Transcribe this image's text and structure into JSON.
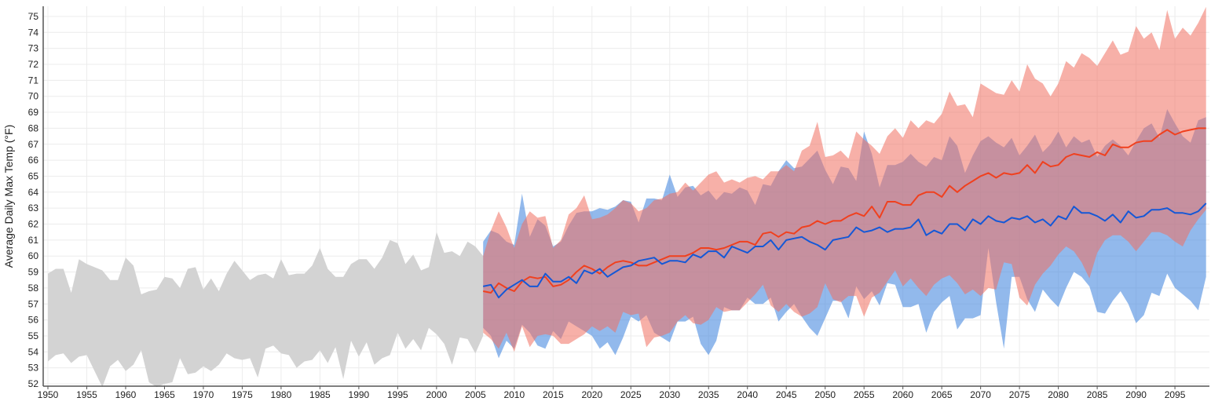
{
  "chart_data": {
    "type": "area",
    "title": "",
    "xlabel": "",
    "ylabel": "Average Daily Max Temp (°F)",
    "xlim": [
      1950,
      2099
    ],
    "ylim": [
      52,
      75
    ],
    "x_ticks": [
      1950,
      1955,
      1960,
      1965,
      1970,
      1975,
      1980,
      1985,
      1990,
      1995,
      2000,
      2005,
      2010,
      2015,
      2020,
      2025,
      2030,
      2035,
      2040,
      2045,
      2050,
      2055,
      2060,
      2065,
      2070,
      2075,
      2080,
      2085,
      2090,
      2095
    ],
    "y_ticks": [
      52,
      53,
      54,
      55,
      56,
      57,
      58,
      59,
      60,
      61,
      62,
      63,
      64,
      65,
      66,
      67,
      68,
      69,
      70,
      71,
      72,
      73,
      74,
      75
    ],
    "grid": true,
    "colors": {
      "historical": "#d3d3d3",
      "lower_band": "#8ab4e8",
      "lower_line": "#1558d6",
      "higher_band": "#f4978a",
      "higher_line": "#f0401e"
    },
    "historical": {
      "start_year": 1950,
      "max": [
        58.9,
        59.2,
        59.2,
        57.7,
        59.8,
        59.5,
        59.3,
        59.1,
        58.5,
        58.5,
        59.9,
        59.4,
        57.6,
        57.8,
        57.9,
        58.7,
        58.6,
        58.0,
        59.2,
        59.3,
        57.9,
        58.6,
        57.8,
        58.9,
        59.7,
        59.1,
        58.5,
        58.8,
        58.9,
        58.6,
        59.8,
        58.8,
        58.9,
        58.9,
        59.4,
        60.5,
        59.2,
        58.7,
        58.7,
        59.5,
        59.8,
        59.8,
        59.2,
        59.9,
        61.0,
        60.8,
        59.5,
        60.1,
        59.1,
        59.3,
        61.5,
        60.2,
        60.3,
        60.0,
        60.9,
        60.6,
        60.0
      ],
      "min": [
        53.4,
        53.8,
        53.9,
        53.3,
        53.7,
        53.8,
        52.8,
        51.8,
        53.1,
        53.5,
        52.8,
        53.2,
        54.1,
        52.1,
        51.8,
        52.0,
        52.1,
        53.6,
        52.6,
        52.7,
        53.1,
        52.8,
        53.2,
        53.9,
        53.6,
        53.5,
        53.6,
        52.4,
        54.2,
        54.4,
        53.9,
        53.8,
        53.0,
        53.4,
        53.5,
        54.1,
        53.3,
        54.3,
        52.3,
        54.7,
        53.7,
        54.6,
        53.2,
        53.6,
        53.8,
        55.2,
        54.2,
        54.8,
        54.1,
        55.5,
        55.1,
        54.5,
        53.2,
        54.9,
        54.8,
        53.9,
        55.0
      ]
    },
    "projection_start_year": 2006,
    "lower": {
      "mean": [
        58.1,
        58.2,
        57.4,
        57.9,
        58.2,
        58.5,
        58.1,
        58.1,
        58.9,
        58.4,
        58.4,
        58.7,
        58.3,
        59.1,
        58.9,
        59.2,
        58.7,
        59.0,
        59.3,
        59.4,
        59.7,
        59.8,
        59.9,
        59.5,
        59.7,
        59.7,
        59.6,
        60.1,
        59.9,
        60.3,
        60.3,
        59.9,
        60.6,
        60.4,
        60.2,
        60.6,
        60.6,
        61.0,
        60.4,
        61.0,
        61.1,
        61.2,
        60.9,
        60.7,
        60.4,
        61.0,
        61.1,
        61.2,
        61.8,
        61.5,
        61.6,
        61.8,
        61.5,
        61.7,
        61.7,
        61.8,
        62.3,
        61.3,
        61.6,
        61.4,
        62.0,
        62.0,
        61.6,
        62.3,
        62.0,
        62.5,
        62.2,
        62.1,
        62.4,
        62.3,
        62.5,
        62.1,
        62.3,
        61.9,
        62.5,
        62.3,
        63.1,
        62.7,
        62.7,
        62.5,
        62.2,
        62.6,
        62.1,
        62.8,
        62.4,
        62.5,
        62.9,
        62.9,
        63.0,
        62.7,
        62.7,
        62.6,
        62.8,
        63.3
      ],
      "max": [
        60.9,
        61.6,
        61.4,
        60.9,
        60.7,
        63.9,
        61.2,
        62.3,
        61.9,
        60.6,
        60.9,
        61.9,
        62.7,
        62.8,
        62.8,
        63.0,
        62.9,
        63.1,
        63.5,
        63.4,
        62.1,
        63.6,
        63.6,
        63.5,
        65.1,
        63.7,
        64.3,
        64.4,
        63.8,
        64.1,
        63.5,
        64.0,
        63.9,
        64.3,
        64.1,
        63.2,
        64.5,
        64.4,
        65.3,
        66.0,
        65.5,
        65.6,
        66.1,
        66.6,
        65.4,
        64.5,
        65.6,
        65.5,
        64.7,
        67.8,
        66.4,
        64.3,
        65.7,
        65.7,
        65.9,
        66.4,
        65.9,
        65.6,
        66.2,
        66.0,
        67.5,
        66.9,
        65.2,
        66.3,
        67.2,
        67.5,
        67.1,
        66.8,
        67.4,
        66.3,
        66.9,
        67.6,
        66.5,
        67.0,
        67.8,
        66.8,
        67.5,
        67.1,
        67.3,
        66.2,
        66.9,
        67.3,
        66.9,
        66.3,
        67.2,
        68.0,
        68.3,
        67.4,
        69.2,
        68.3,
        67.5,
        67.1,
        68.5,
        68.7
      ],
      "min": [
        55.5,
        55.0,
        53.6,
        54.7,
        54.2,
        55.7,
        55.2,
        54.4,
        54.2,
        55.3,
        54.8,
        55.9,
        55.6,
        55.3,
        55.0,
        54.2,
        54.6,
        53.8,
        54.9,
        56.2,
        55.9,
        56.3,
        55.2,
        54.9,
        54.6,
        55.9,
        55.9,
        56.2,
        54.5,
        53.8,
        54.7,
        56.8,
        56.6,
        56.6,
        57.4,
        57.0,
        57.0,
        57.4,
        55.9,
        56.5,
        57.0,
        56.2,
        55.5,
        55.0,
        56.1,
        57.2,
        57.2,
        56.1,
        58.1,
        57.3,
        57.8,
        56.9,
        58.3,
        58.2,
        56.8,
        56.8,
        57.0,
        55.2,
        56.5,
        57.1,
        57.5,
        55.4,
        56.1,
        56.1,
        56.3,
        60.5,
        57.1,
        54.2,
        58.7,
        58.7,
        57.3,
        56.5,
        57.9,
        57.3,
        56.8,
        58.0,
        59.0,
        58.7,
        58.1,
        56.5,
        56.4,
        57.2,
        57.8,
        57.0,
        55.8,
        56.3,
        57.7,
        57.5,
        58.9,
        58.0,
        57.6,
        57.2,
        56.6,
        58.7
      ]
    },
    "higher": {
      "mean": [
        57.8,
        57.7,
        58.3,
        58.0,
        57.8,
        58.4,
        58.7,
        58.6,
        58.7,
        58.1,
        58.2,
        58.5,
        59.0,
        59.4,
        59.2,
        58.9,
        59.3,
        59.6,
        59.7,
        59.6,
        59.4,
        59.4,
        59.6,
        59.8,
        60.0,
        60.0,
        60.0,
        60.2,
        60.5,
        60.5,
        60.4,
        60.5,
        60.7,
        60.9,
        60.9,
        60.7,
        61.4,
        61.5,
        61.2,
        61.5,
        61.4,
        61.8,
        61.9,
        62.2,
        62.0,
        62.2,
        62.2,
        62.5,
        62.7,
        62.5,
        63.1,
        62.4,
        63.4,
        63.4,
        63.2,
        63.2,
        63.8,
        64.0,
        64.0,
        63.7,
        64.4,
        64.0,
        64.4,
        64.7,
        65.0,
        65.2,
        64.9,
        65.2,
        65.1,
        65.2,
        65.7,
        65.2,
        65.9,
        65.6,
        65.7,
        66.2,
        66.4,
        66.3,
        66.2,
        66.5,
        66.3,
        67.0,
        66.8,
        66.8,
        67.1,
        67.2,
        67.2,
        67.6,
        67.9,
        67.6,
        67.8,
        67.9,
        68.0,
        68.0
      ],
      "max": [
        60.0,
        61.6,
        62.8,
        61.8,
        60.5,
        62.0,
        62.8,
        62.4,
        62.5,
        60.5,
        61.0,
        62.6,
        63.0,
        63.8,
        62.3,
        62.4,
        62.6,
        63.0,
        63.5,
        63.3,
        62.8,
        63.0,
        63.5,
        63.6,
        63.9,
        64.0,
        64.6,
        64.1,
        64.6,
        65.1,
        65.3,
        64.6,
        64.8,
        64.6,
        64.9,
        65.0,
        64.8,
        65.3,
        65.3,
        65.7,
        65.3,
        66.6,
        66.9,
        68.4,
        66.2,
        66.3,
        66.6,
        66.1,
        67.8,
        67.3,
        66.9,
        66.4,
        67.5,
        68.0,
        67.4,
        68.5,
        68.0,
        68.5,
        68.3,
        68.9,
        70.3,
        69.4,
        69.5,
        68.7,
        70.8,
        70.5,
        70.2,
        70.1,
        71.0,
        70.3,
        72.0,
        71.1,
        70.8,
        70.0,
        70.8,
        72.2,
        71.8,
        72.7,
        72.4,
        71.9,
        72.7,
        73.5,
        72.6,
        72.8,
        74.4,
        73.6,
        74.0,
        72.9,
        75.4,
        73.6,
        74.3,
        73.8,
        74.6,
        75.6
      ],
      "min": [
        55.2,
        54.8,
        54.2,
        55.2,
        54.0,
        55.6,
        54.3,
        55.0,
        55.1,
        55.0,
        54.5,
        54.5,
        54.8,
        55.1,
        55.6,
        55.3,
        55.6,
        55.2,
        56.5,
        56.3,
        56.4,
        54.3,
        54.9,
        55.0,
        55.2,
        55.9,
        56.3,
        55.8,
        55.7,
        56.0,
        56.8,
        56.5,
        56.6,
        56.6,
        57.1,
        57.6,
        58.2,
        56.9,
        56.5,
        57.0,
        56.5,
        56.2,
        56.4,
        56.8,
        58.3,
        57.3,
        57.1,
        57.5,
        57.5,
        56.2,
        57.4,
        57.7,
        58.4,
        59.1,
        58.1,
        58.6,
        58.0,
        57.5,
        58.2,
        58.6,
        58.8,
        58.3,
        57.6,
        57.9,
        57.5,
        58.0,
        57.9,
        59.6,
        59.5,
        57.4,
        56.9,
        58.2,
        58.9,
        59.4,
        60.1,
        60.6,
        60.3,
        59.6,
        58.6,
        60.2,
        61.0,
        61.3,
        61.3,
        60.9,
        60.3,
        60.9,
        61.5,
        61.5,
        61.3,
        60.9,
        60.6,
        61.6,
        62.3,
        62.9
      ]
    }
  }
}
